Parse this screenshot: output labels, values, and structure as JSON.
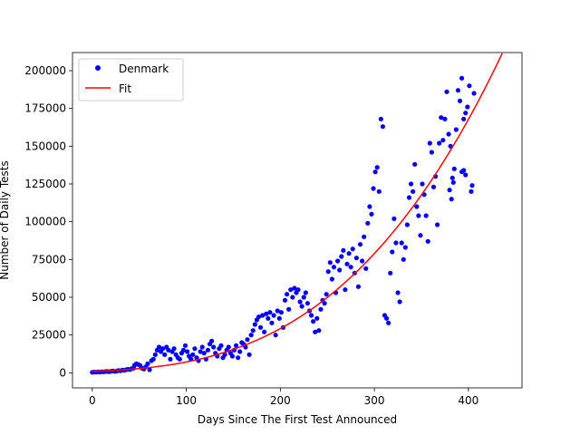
{
  "chart_data": {
    "type": "scatter",
    "xlabel": "Days Since The First Test Announced",
    "ylabel": "Number of Daily Tests",
    "xlim": [
      -21,
      457
    ],
    "ylim": [
      -10000,
      212000
    ],
    "xticks": [
      0,
      100,
      200,
      300,
      400
    ],
    "yticks": [
      0,
      25000,
      50000,
      75000,
      100000,
      125000,
      150000,
      175000,
      200000
    ],
    "grid": false,
    "legend_position": "top-left",
    "series": [
      {
        "name": "Denmark",
        "kind": "scatter",
        "color": "#0000ff",
        "points": [
          [
            0,
            300
          ],
          [
            2,
            500
          ],
          [
            4,
            400
          ],
          [
            6,
            600
          ],
          [
            8,
            500
          ],
          [
            10,
            700
          ],
          [
            12,
            600
          ],
          [
            14,
            800
          ],
          [
            16,
            900
          ],
          [
            18,
            700
          ],
          [
            20,
            1000
          ],
          [
            22,
            1200
          ],
          [
            24,
            900
          ],
          [
            26,
            1100
          ],
          [
            28,
            1500
          ],
          [
            30,
            1300
          ],
          [
            32,
            1800
          ],
          [
            34,
            1600
          ],
          [
            36,
            2000
          ],
          [
            38,
            2300
          ],
          [
            40,
            2100
          ],
          [
            42,
            2800
          ],
          [
            44,
            3000
          ],
          [
            45,
            5000
          ],
          [
            47,
            6000
          ],
          [
            49,
            5500
          ],
          [
            51,
            4800
          ],
          [
            53,
            3000
          ],
          [
            55,
            2500
          ],
          [
            57,
            4000
          ],
          [
            59,
            6000
          ],
          [
            61,
            2000
          ],
          [
            63,
            8000
          ],
          [
            65,
            9000
          ],
          [
            67,
            12000
          ],
          [
            69,
            15000
          ],
          [
            71,
            17000
          ],
          [
            73,
            14000
          ],
          [
            75,
            16000
          ],
          [
            77,
            12000
          ],
          [
            79,
            17000
          ],
          [
            81,
            15000
          ],
          [
            83,
            9000
          ],
          [
            85,
            14000
          ],
          [
            87,
            16000
          ],
          [
            89,
            12000
          ],
          [
            91,
            10000
          ],
          [
            93,
            9000
          ],
          [
            95,
            13000
          ],
          [
            97,
            15000
          ],
          [
            99,
            18000
          ],
          [
            101,
            14000
          ],
          [
            103,
            11000
          ],
          [
            105,
            9000
          ],
          [
            107,
            12000
          ],
          [
            109,
            16000
          ],
          [
            111,
            10000
          ],
          [
            113,
            8000
          ],
          [
            115,
            14000
          ],
          [
            117,
            17000
          ],
          [
            119,
            13000
          ],
          [
            121,
            9000
          ],
          [
            123,
            15000
          ],
          [
            125,
            19000
          ],
          [
            127,
            21000
          ],
          [
            129,
            17000
          ],
          [
            131,
            13000
          ],
          [
            133,
            11000
          ],
          [
            135,
            16000
          ],
          [
            137,
            18000
          ],
          [
            139,
            10000
          ],
          [
            141,
            12000
          ],
          [
            143,
            15000
          ],
          [
            145,
            17000
          ],
          [
            147,
            13000
          ],
          [
            149,
            11000
          ],
          [
            151,
            15000
          ],
          [
            153,
            18000
          ],
          [
            155,
            10000
          ],
          [
            157,
            14000
          ],
          [
            159,
            20000
          ],
          [
            161,
            19000
          ],
          [
            163,
            17000
          ],
          [
            165,
            22000
          ],
          [
            167,
            12000
          ],
          [
            169,
            25000
          ],
          [
            171,
            28000
          ],
          [
            173,
            32000
          ],
          [
            175,
            35000
          ],
          [
            177,
            37000
          ],
          [
            179,
            30000
          ],
          [
            181,
            38000
          ],
          [
            183,
            27000
          ],
          [
            185,
            39000
          ],
          [
            187,
            36000
          ],
          [
            189,
            40000
          ],
          [
            191,
            33000
          ],
          [
            193,
            38000
          ],
          [
            195,
            25000
          ],
          [
            197,
            41000
          ],
          [
            199,
            36000
          ],
          [
            201,
            40000
          ],
          [
            203,
            30000
          ],
          [
            205,
            48000
          ],
          [
            207,
            52000
          ],
          [
            209,
            42000
          ],
          [
            211,
            55000
          ],
          [
            213,
            50000
          ],
          [
            215,
            56000
          ],
          [
            217,
            53000
          ],
          [
            219,
            55000
          ],
          [
            221,
            47000
          ],
          [
            223,
            44000
          ],
          [
            225,
            50000
          ],
          [
            227,
            53000
          ],
          [
            229,
            46000
          ],
          [
            231,
            41000
          ],
          [
            233,
            38000
          ],
          [
            235,
            34000
          ],
          [
            237,
            27000
          ],
          [
            239,
            36000
          ],
          [
            241,
            28000
          ],
          [
            243,
            42000
          ],
          [
            245,
            48000
          ],
          [
            247,
            46000
          ],
          [
            249,
            52000
          ],
          [
            251,
            67000
          ],
          [
            253,
            73000
          ],
          [
            255,
            62000
          ],
          [
            257,
            70000
          ],
          [
            259,
            53000
          ],
          [
            261,
            74000
          ],
          [
            263,
            68000
          ],
          [
            265,
            77000
          ],
          [
            267,
            81000
          ],
          [
            269,
            55000
          ],
          [
            271,
            72000
          ],
          [
            273,
            79000
          ],
          [
            275,
            70000
          ],
          [
            277,
            82000
          ],
          [
            279,
            66000
          ],
          [
            281,
            76000
          ],
          [
            283,
            57000
          ],
          [
            285,
            85000
          ],
          [
            287,
            74000
          ],
          [
            289,
            90000
          ],
          [
            291,
            69000
          ],
          [
            293,
            99000
          ],
          [
            295,
            110000
          ],
          [
            297,
            105000
          ],
          [
            299,
            122000
          ],
          [
            301,
            133000
          ],
          [
            303,
            136000
          ],
          [
            305,
            120000
          ],
          [
            307,
            168000
          ],
          [
            309,
            163000
          ],
          [
            311,
            38000
          ],
          [
            313,
            36000
          ],
          [
            315,
            33000
          ],
          [
            317,
            66000
          ],
          [
            319,
            80000
          ],
          [
            321,
            102000
          ],
          [
            323,
            86000
          ],
          [
            325,
            53000
          ],
          [
            327,
            47000
          ],
          [
            329,
            86000
          ],
          [
            331,
            75000
          ],
          [
            333,
            83000
          ],
          [
            335,
            98000
          ],
          [
            337,
            116000
          ],
          [
            339,
            125000
          ],
          [
            341,
            120000
          ],
          [
            343,
            138000
          ],
          [
            345,
            110000
          ],
          [
            347,
            104000
          ],
          [
            349,
            91000
          ],
          [
            351,
            125000
          ],
          [
            353,
            118000
          ],
          [
            355,
            104000
          ],
          [
            357,
            87000
          ],
          [
            359,
            152000
          ],
          [
            361,
            146000
          ],
          [
            363,
            123000
          ],
          [
            365,
            130000
          ],
          [
            367,
            98000
          ],
          [
            369,
            152000
          ],
          [
            371,
            169000
          ],
          [
            373,
            154000
          ],
          [
            375,
            168000
          ],
          [
            377,
            186000
          ],
          [
            379,
            158000
          ],
          [
            381,
            150000
          ],
          [
            383,
            129000
          ],
          [
            385,
            135000
          ],
          [
            387,
            161000
          ],
          [
            389,
            187000
          ],
          [
            391,
            180000
          ],
          [
            393,
            195000
          ],
          [
            395,
            168000
          ],
          [
            397,
            172000
          ],
          [
            399,
            176000
          ],
          [
            401,
            190000
          ],
          [
            403,
            120000
          ],
          [
            404,
            124000
          ],
          [
            406,
            185000
          ],
          [
            393,
            133000
          ],
          [
            395,
            134000
          ],
          [
            397,
            131000
          ],
          [
            380,
            121000
          ],
          [
            382,
            115000
          ],
          [
            384,
            126000
          ]
        ]
      },
      {
        "name": "Fit",
        "kind": "line",
        "color": "#ff0000",
        "x_start": 0,
        "x_end": 436,
        "model": "cubic",
        "coefficients": [
          1000,
          20,
          0.22,
          0.00193
        ]
      }
    ]
  }
}
